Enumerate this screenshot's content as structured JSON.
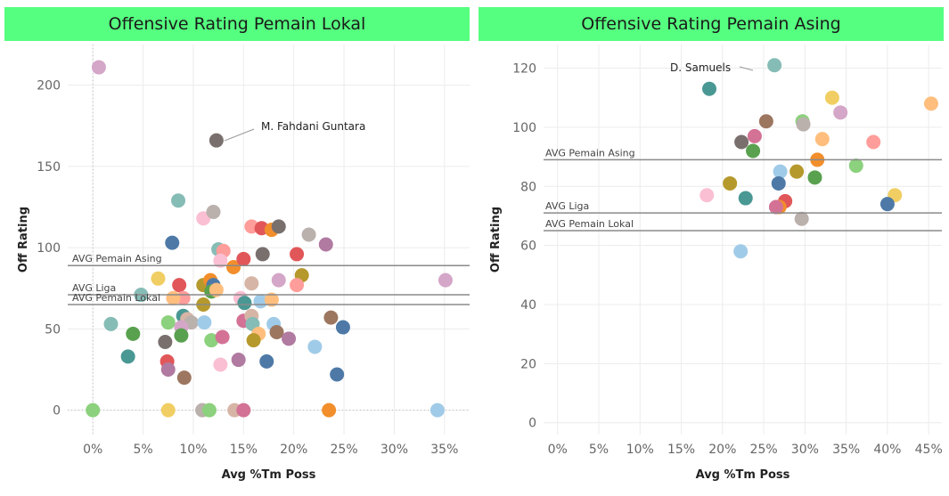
{
  "charts": [
    {
      "title": "Offensive Rating Pemain Lokal",
      "xlabel": "Avg %Tm Poss",
      "ylabel": "Off Rating"
    },
    {
      "title": "Offensive Rating Pemain Asing",
      "xlabel": "Avg %Tm Poss",
      "ylabel": "Off Rating"
    }
  ],
  "chart_data": [
    {
      "type": "scatter",
      "title": "Offensive Rating Pemain Lokal",
      "xlabel": "Avg %Tm Poss",
      "ylabel": "Off Rating",
      "xlim": [
        -2.5,
        37.5
      ],
      "ylim": [
        -15,
        225
      ],
      "x_ticks": [
        "0%",
        "5%",
        "10%",
        "15%",
        "20%",
        "25%",
        "30%",
        "35%"
      ],
      "y_ticks": [
        "0",
        "50",
        "100",
        "150",
        "200"
      ],
      "grid": true,
      "reference_lines": [
        {
          "label": "AVG Pemain Asing",
          "value": 89
        },
        {
          "label": "AVG Liga",
          "value": 71
        },
        {
          "label": "AVG Pemain Lokal",
          "value": 65
        }
      ],
      "annotations": [
        {
          "text": "M. Fahdani Guntara",
          "x": 12.3,
          "y": 166
        }
      ],
      "points": [
        {
          "x": 0.6,
          "y": 211,
          "color": "#d4a6c8"
        },
        {
          "x": 12.3,
          "y": 166,
          "color": "#79706e"
        },
        {
          "x": 8.5,
          "y": 129,
          "color": "#86bcb6"
        },
        {
          "x": 11.0,
          "y": 118,
          "color": "#fabfd2"
        },
        {
          "x": 12.0,
          "y": 122,
          "color": "#bab0ac"
        },
        {
          "x": 7.9,
          "y": 103,
          "color": "#4e79a7"
        },
        {
          "x": 12.5,
          "y": 99,
          "color": "#86bcb6"
        },
        {
          "x": 13.0,
          "y": 98,
          "color": "#ff9d9a"
        },
        {
          "x": 12.7,
          "y": 92,
          "color": "#fabfd2"
        },
        {
          "x": 14.0,
          "y": 88,
          "color": "#f28e2b"
        },
        {
          "x": 15.0,
          "y": 93,
          "color": "#e15759"
        },
        {
          "x": 15.8,
          "y": 113,
          "color": "#ff9d9a"
        },
        {
          "x": 16.8,
          "y": 112,
          "color": "#e15759"
        },
        {
          "x": 17.8,
          "y": 111,
          "color": "#f28e2b"
        },
        {
          "x": 18.5,
          "y": 113,
          "color": "#79706e"
        },
        {
          "x": 16.9,
          "y": 96,
          "color": "#79706e"
        },
        {
          "x": 21.5,
          "y": 108,
          "color": "#bab0ac"
        },
        {
          "x": 23.2,
          "y": 102,
          "color": "#b07aa1"
        },
        {
          "x": 20.3,
          "y": 96,
          "color": "#e15759"
        },
        {
          "x": 20.8,
          "y": 83,
          "color": "#b6992d"
        },
        {
          "x": 20.3,
          "y": 77,
          "color": "#ff9d9a"
        },
        {
          "x": 18.5,
          "y": 80,
          "color": "#d4a6c8"
        },
        {
          "x": 15.8,
          "y": 78,
          "color": "#d7b5a6"
        },
        {
          "x": 6.5,
          "y": 81,
          "color": "#f1ce63"
        },
        {
          "x": 8.6,
          "y": 77,
          "color": "#e15759"
        },
        {
          "x": 9.0,
          "y": 69,
          "color": "#ff9d9a"
        },
        {
          "x": 8.0,
          "y": 69,
          "color": "#ffbe7d"
        },
        {
          "x": 11.0,
          "y": 77,
          "color": "#b6992d"
        },
        {
          "x": 11.7,
          "y": 80,
          "color": "#f28e2b"
        },
        {
          "x": 12.0,
          "y": 77,
          "color": "#4e79a7"
        },
        {
          "x": 11.8,
          "y": 73,
          "color": "#59a14f"
        },
        {
          "x": 12.3,
          "y": 74,
          "color": "#ffbe7d"
        },
        {
          "x": 11.0,
          "y": 65,
          "color": "#b6992d"
        },
        {
          "x": 14.7,
          "y": 69,
          "color": "#fabfd2"
        },
        {
          "x": 15.1,
          "y": 66,
          "color": "#499894"
        },
        {
          "x": 16.7,
          "y": 67,
          "color": "#a0cbe8"
        },
        {
          "x": 17.8,
          "y": 68,
          "color": "#ffbe7d"
        },
        {
          "x": 35.1,
          "y": 80,
          "color": "#d4a6c8"
        },
        {
          "x": 4.8,
          "y": 71,
          "color": "#86bcb6"
        },
        {
          "x": 1.8,
          "y": 53,
          "color": "#86bcb6"
        },
        {
          "x": 4.0,
          "y": 47,
          "color": "#59a14f"
        },
        {
          "x": 7.5,
          "y": 54,
          "color": "#8cd17d"
        },
        {
          "x": 9.0,
          "y": 58,
          "color": "#499894"
        },
        {
          "x": 9.4,
          "y": 56,
          "color": "#d7b5a6"
        },
        {
          "x": 9.8,
          "y": 54,
          "color": "#bab0ac"
        },
        {
          "x": 8.8,
          "y": 51,
          "color": "#d4a6c8"
        },
        {
          "x": 8.8,
          "y": 46,
          "color": "#59a14f"
        },
        {
          "x": 11.1,
          "y": 54,
          "color": "#a0cbe8"
        },
        {
          "x": 11.8,
          "y": 43,
          "color": "#8cd17d"
        },
        {
          "x": 12.9,
          "y": 45,
          "color": "#d37295"
        },
        {
          "x": 15.0,
          "y": 55,
          "color": "#d37295"
        },
        {
          "x": 15.8,
          "y": 58,
          "color": "#d7b5a6"
        },
        {
          "x": 15.9,
          "y": 53,
          "color": "#86bcb6"
        },
        {
          "x": 16.5,
          "y": 47,
          "color": "#ffbe7d"
        },
        {
          "x": 16.0,
          "y": 43,
          "color": "#b6992d"
        },
        {
          "x": 18.0,
          "y": 53,
          "color": "#a0cbe8"
        },
        {
          "x": 18.3,
          "y": 48,
          "color": "#9d7660"
        },
        {
          "x": 19.5,
          "y": 44,
          "color": "#b07aa1"
        },
        {
          "x": 23.7,
          "y": 57,
          "color": "#9d7660"
        },
        {
          "x": 24.9,
          "y": 51,
          "color": "#4e79a7"
        },
        {
          "x": 22.1,
          "y": 39,
          "color": "#a0cbe8"
        },
        {
          "x": 7.2,
          "y": 42,
          "color": "#79706e"
        },
        {
          "x": 3.5,
          "y": 33,
          "color": "#499894"
        },
        {
          "x": 7.4,
          "y": 30,
          "color": "#e15759"
        },
        {
          "x": 7.5,
          "y": 25,
          "color": "#b07aa1"
        },
        {
          "x": 9.1,
          "y": 20,
          "color": "#9d7660"
        },
        {
          "x": 12.7,
          "y": 28,
          "color": "#fabfd2"
        },
        {
          "x": 14.5,
          "y": 31,
          "color": "#b07aa1"
        },
        {
          "x": 17.3,
          "y": 30,
          "color": "#4e79a7"
        },
        {
          "x": 24.3,
          "y": 22,
          "color": "#4e79a7"
        },
        {
          "x": 0.0,
          "y": 0,
          "color": "#8cd17d"
        },
        {
          "x": 7.5,
          "y": 0,
          "color": "#f1ce63"
        },
        {
          "x": 10.9,
          "y": 0,
          "color": "#bab0ac"
        },
        {
          "x": 11.6,
          "y": 0,
          "color": "#8cd17d"
        },
        {
          "x": 14.1,
          "y": 0,
          "color": "#d7b5a6"
        },
        {
          "x": 15.0,
          "y": 0,
          "color": "#d37295"
        },
        {
          "x": 23.5,
          "y": 0,
          "color": "#f28e2b"
        },
        {
          "x": 34.3,
          "y": 0,
          "color": "#a0cbe8"
        }
      ]
    },
    {
      "type": "scatter",
      "title": "Offensive Rating Pemain Asing",
      "xlabel": "Avg %Tm Poss",
      "ylabel": "Off Rating",
      "xlim": [
        -1.7,
        46.6
      ],
      "ylim": [
        -4,
        128
      ],
      "x_ticks": [
        "0%",
        "5%",
        "10%",
        "15%",
        "20%",
        "25%",
        "30%",
        "35%",
        "40%",
        "45%"
      ],
      "y_ticks": [
        "0",
        "20",
        "40",
        "60",
        "80",
        "100",
        "120"
      ],
      "grid": true,
      "reference_lines": [
        {
          "label": "AVG Pemain Asing",
          "value": 89
        },
        {
          "label": "AVG Liga",
          "value": 71
        },
        {
          "label": "AVG Pemain Lokal",
          "value": 65
        }
      ],
      "annotations": [
        {
          "text": "D. Samuels",
          "x": 26.3,
          "y": 121
        }
      ],
      "points": [
        {
          "x": 26.3,
          "y": 121,
          "color": "#86bcb6"
        },
        {
          "x": 18.4,
          "y": 113,
          "color": "#499894"
        },
        {
          "x": 25.3,
          "y": 102,
          "color": "#9d7660"
        },
        {
          "x": 29.7,
          "y": 102,
          "color": "#8cd17d"
        },
        {
          "x": 29.8,
          "y": 101,
          "color": "#bab0ac"
        },
        {
          "x": 33.3,
          "y": 110,
          "color": "#f1ce63"
        },
        {
          "x": 34.3,
          "y": 105,
          "color": "#d4a6c8"
        },
        {
          "x": 45.3,
          "y": 108,
          "color": "#ffbe7d"
        },
        {
          "x": 23.9,
          "y": 97,
          "color": "#d37295"
        },
        {
          "x": 22.3,
          "y": 95,
          "color": "#79706e"
        },
        {
          "x": 23.7,
          "y": 92,
          "color": "#59a14f"
        },
        {
          "x": 32.1,
          "y": 96,
          "color": "#ffbe7d"
        },
        {
          "x": 38.3,
          "y": 95,
          "color": "#ff9d9a"
        },
        {
          "x": 31.5,
          "y": 89,
          "color": "#f28e2b"
        },
        {
          "x": 36.2,
          "y": 87,
          "color": "#8cd17d"
        },
        {
          "x": 27.0,
          "y": 85,
          "color": "#a0cbe8"
        },
        {
          "x": 29.0,
          "y": 85,
          "color": "#b6992d"
        },
        {
          "x": 26.8,
          "y": 81,
          "color": "#4e79a7"
        },
        {
          "x": 31.2,
          "y": 83,
          "color": "#59a14f"
        },
        {
          "x": 20.9,
          "y": 81,
          "color": "#b6992d"
        },
        {
          "x": 18.1,
          "y": 77,
          "color": "#fabfd2"
        },
        {
          "x": 22.8,
          "y": 76,
          "color": "#499894"
        },
        {
          "x": 27.6,
          "y": 75,
          "color": "#e15759"
        },
        {
          "x": 26.5,
          "y": 73,
          "color": "#b07aa1"
        },
        {
          "x": 26.9,
          "y": 73,
          "color": "#f28e2b"
        },
        {
          "x": 26.5,
          "y": 73,
          "color": "#d37295"
        },
        {
          "x": 29.6,
          "y": 69,
          "color": "#bab0ac"
        },
        {
          "x": 40.9,
          "y": 77,
          "color": "#f1ce63"
        },
        {
          "x": 40.0,
          "y": 74,
          "color": "#4e79a7"
        },
        {
          "x": 22.2,
          "y": 58,
          "color": "#a0cbe8"
        }
      ]
    }
  ]
}
